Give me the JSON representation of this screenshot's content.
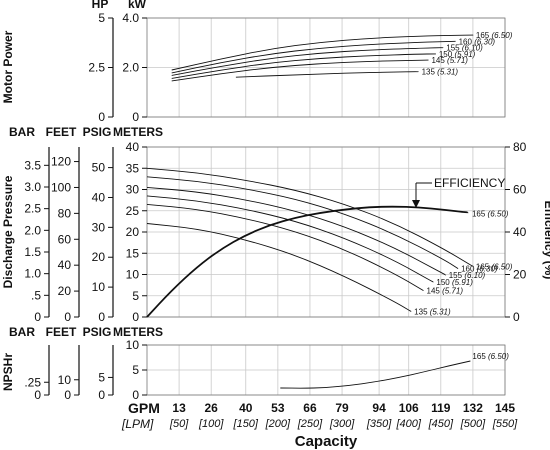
{
  "chart_data": [
    {
      "panel": "power",
      "type": "line",
      "ylabel": "Motor Power",
      "axes": [
        {
          "unit": "HP",
          "range": [
            0,
            5
          ],
          "ticks": [
            0,
            2.5,
            5
          ],
          "tick_labels": [
            "0",
            "2.5",
            "5"
          ]
        },
        {
          "unit": "kW",
          "range": [
            0,
            4.0
          ],
          "ticks": [
            0,
            2.0,
            4.0
          ],
          "tick_labels": [
            "0",
            "2.0",
            "4.0"
          ]
        }
      ],
      "series": [
        {
          "name": "165",
          "name_metric": "(6.50)",
          "x": [
            10,
            30,
            50,
            70,
            90,
            110,
            125,
            132
          ],
          "values": [
            1.9,
            2.35,
            2.75,
            3.02,
            3.18,
            3.27,
            3.3,
            3.31
          ]
        },
        {
          "name": "160",
          "name_metric": "(6.30)",
          "x": [
            10,
            30,
            50,
            70,
            90,
            110,
            125
          ],
          "values": [
            1.78,
            2.2,
            2.55,
            2.78,
            2.93,
            3.02,
            3.06
          ]
        },
        {
          "name": "155",
          "name_metric": "(6.10)",
          "x": [
            10,
            30,
            50,
            70,
            90,
            110,
            120
          ],
          "values": [
            1.68,
            2.05,
            2.37,
            2.58,
            2.71,
            2.78,
            2.8
          ]
        },
        {
          "name": "150",
          "name_metric": "(5.91)",
          "x": [
            10,
            30,
            50,
            70,
            90,
            110,
            117
          ],
          "values": [
            1.56,
            1.9,
            2.19,
            2.37,
            2.48,
            2.54,
            2.55
          ]
        },
        {
          "name": "145",
          "name_metric": "(5.71)",
          "x": [
            10,
            30,
            50,
            70,
            90,
            110,
            114
          ],
          "values": [
            1.46,
            1.75,
            2.0,
            2.16,
            2.25,
            2.29,
            2.3
          ]
        },
        {
          "name": "135",
          "name_metric": "(5.31)",
          "x": [
            36,
            60,
            80,
            100,
            110
          ],
          "values": [
            1.61,
            1.7,
            1.77,
            1.82,
            1.83
          ]
        }
      ]
    },
    {
      "panel": "pressure",
      "type": "line",
      "ylabel": "Discharge Pressure",
      "right_label": "Efficiency (%)",
      "axes": [
        {
          "unit": "BAR",
          "ticks": [
            0,
            0.5,
            1.0,
            1.5,
            2.0,
            2.5,
            3.0,
            3.5
          ],
          "tick_labels": [
            "0",
            ".5",
            "1.0",
            "1.5",
            "2.0",
            "2.5",
            "3.0",
            "3.5"
          ]
        },
        {
          "unit": "FEET",
          "ticks": [
            0,
            20,
            40,
            60,
            80,
            100,
            120
          ],
          "tick_labels": [
            "0",
            "20",
            "40",
            "60",
            "80",
            "100",
            "120"
          ]
        },
        {
          "unit": "PSIG",
          "ticks": [
            0,
            10,
            20,
            30,
            40,
            50
          ],
          "tick_labels": [
            "0",
            "10",
            "20",
            "30",
            "40",
            "50"
          ]
        },
        {
          "unit": "METERS",
          "range": [
            0,
            40
          ],
          "ticks": [
            0,
            5,
            10,
            15,
            20,
            25,
            30,
            35,
            40
          ],
          "tick_labels": [
            "0",
            "5",
            "10",
            "15",
            "20",
            "25",
            "30",
            "35",
            "40"
          ]
        },
        {
          "unit": "%",
          "range": [
            0,
            80
          ],
          "ticks": [
            0,
            20,
            40,
            60,
            80
          ],
          "tick_labels": [
            "0",
            "20",
            "40",
            "60",
            "80"
          ]
        }
      ],
      "series": [
        {
          "name": "165",
          "name_metric": "(6.50)",
          "x": [
            0,
            20,
            40,
            60,
            80,
            100,
            120,
            132
          ],
          "values": [
            35.0,
            34.0,
            32.2,
            29.9,
            26.6,
            22.1,
            16.1,
            11.9
          ]
        },
        {
          "name": "160",
          "name_metric": "(6.30)",
          "x": [
            0,
            20,
            40,
            60,
            80,
            100,
            120,
            126
          ],
          "values": [
            33.0,
            32.0,
            30.2,
            27.8,
            24.3,
            19.6,
            13.6,
            11.4
          ]
        },
        {
          "name": "155",
          "name_metric": "(6.10)",
          "x": [
            0,
            20,
            40,
            60,
            80,
            100,
            120,
            121
          ],
          "values": [
            30.5,
            29.5,
            27.6,
            25.0,
            21.3,
            16.4,
            10.2,
            9.9
          ]
        },
        {
          "name": "150",
          "name_metric": "(5.91)",
          "x": [
            0,
            20,
            40,
            60,
            80,
            100,
            116
          ],
          "values": [
            28.5,
            27.4,
            25.4,
            22.6,
            18.6,
            13.4,
            8.2
          ]
        },
        {
          "name": "145",
          "name_metric": "(5.71)",
          "x": [
            0,
            20,
            40,
            60,
            80,
            100,
            112
          ],
          "values": [
            26.5,
            25.4,
            23.2,
            20.2,
            15.9,
            10.3,
            6.2
          ]
        },
        {
          "name": "135",
          "name_metric": "(5.31)",
          "x": [
            0,
            20,
            40,
            60,
            80,
            100,
            107
          ],
          "values": [
            22.0,
            20.8,
            18.2,
            14.6,
            9.6,
            3.7,
            1.3
          ]
        },
        {
          "name": "EFFICIENCY",
          "axis": "%",
          "label": "165",
          "label_metric": "(6.50)",
          "x": [
            0,
            10,
            20,
            30,
            40,
            50,
            60,
            70,
            80,
            90,
            100,
            110,
            120,
            130
          ],
          "values": [
            0,
            12.5,
            23.3,
            32.0,
            38.6,
            43.4,
            46.7,
            49.0,
            50.6,
            51.7,
            52.0,
            51.6,
            50.5,
            49.2
          ]
        }
      ]
    },
    {
      "panel": "npsh",
      "type": "line",
      "ylabel": "NPSHr",
      "axes": [
        {
          "unit": "BAR",
          "ticks": [
            0,
            0.25
          ],
          "tick_labels": [
            "0",
            ".25"
          ]
        },
        {
          "unit": "FEET",
          "ticks": [
            0,
            10
          ],
          "tick_labels": [
            "0",
            "10"
          ]
        },
        {
          "unit": "PSIG",
          "ticks": [
            0,
            5
          ],
          "tick_labels": [
            "0",
            "5"
          ]
        },
        {
          "unit": "METERS",
          "range": [
            0,
            10
          ],
          "ticks": [
            0,
            5,
            10
          ],
          "tick_labels": [
            "0",
            "5",
            "10"
          ]
        }
      ],
      "series": [
        {
          "name": "165",
          "name_metric": "(6.50)",
          "x": [
            54,
            63,
            72,
            82,
            92,
            102,
            112,
            122,
            131
          ],
          "values": [
            1.4,
            1.35,
            1.45,
            1.9,
            2.6,
            3.5,
            4.6,
            5.8,
            6.8
          ]
        }
      ]
    }
  ],
  "x_axis": {
    "range": [
      0,
      145
    ],
    "units": [
      "GPM",
      "[LPM]"
    ],
    "gpm_ticks": [
      13,
      26,
      40,
      53,
      66,
      79,
      94,
      106,
      119,
      132,
      145
    ],
    "gpm_labels": [
      "13",
      "26",
      "40",
      "53",
      "66",
      "79",
      "94",
      "106",
      "119",
      "132",
      "145"
    ],
    "lpm_labels": [
      "[50]",
      "[100]",
      "[150]",
      "[200]",
      "[250]",
      "[300]",
      "[350]",
      "[400]",
      "[450]",
      "[500]",
      "[550]"
    ],
    "title": "Capacity"
  },
  "text": {
    "efficiency_label": "EFFICIENCY"
  }
}
